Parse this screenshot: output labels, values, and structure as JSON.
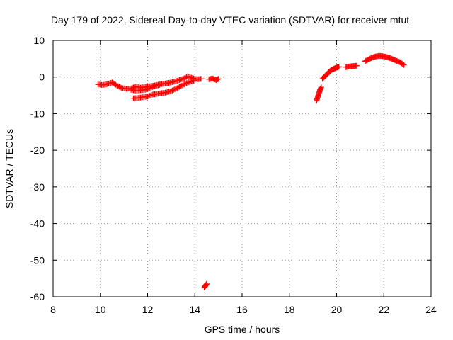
{
  "chart_data": {
    "type": "scatter",
    "title": "Day 179 of 2022, Sidereal Day-to-day VTEC variation (SDTVAR) for receiver mtut",
    "xlabel": "GPS time / hours",
    "ylabel": "SDTVAR / TECUs",
    "xlim": [
      8,
      24
    ],
    "ylim": [
      -60,
      10
    ],
    "xticks": [
      8,
      10,
      12,
      14,
      16,
      18,
      20,
      22,
      24
    ],
    "yticks": [
      -60,
      -50,
      -40,
      -30,
      -20,
      -10,
      0,
      10
    ],
    "grid": true,
    "marker": "plus",
    "series_color": "#ff0000",
    "series": [
      {
        "name": "SDTVAR",
        "segments": [
          {
            "x": [
              9.9,
              10.1,
              10.3,
              10.5,
              10.7,
              10.9,
              11.1,
              11.3,
              11.5,
              11.7,
              11.9,
              12.1,
              12.3,
              12.5,
              12.7,
              12.9,
              13.1,
              13.3,
              13.5,
              13.7,
              13.9,
              14.1,
              14.3
            ],
            "y": [
              -2.0,
              -2.2,
              -1.9,
              -1.5,
              -2.3,
              -3.0,
              -3.2,
              -3.1,
              -2.6,
              -2.9,
              -2.7,
              -2.5,
              -2.3,
              -2.0,
              -1.8,
              -1.6,
              -1.3,
              -0.9,
              -0.5,
              0.2,
              -0.3,
              -0.6,
              -0.5
            ]
          },
          {
            "x": [
              11.4,
              11.6,
              11.8,
              12.0,
              12.2,
              12.4,
              12.6,
              12.8,
              13.0,
              13.2,
              13.4,
              13.6,
              13.8,
              14.0
            ],
            "y": [
              -5.8,
              -5.7,
              -5.5,
              -5.3,
              -4.8,
              -4.6,
              -4.4,
              -4.2,
              -3.8,
              -3.2,
              -2.5,
              -1.8,
              -1.3,
              -0.9
            ]
          },
          {
            "x": [
              11.3,
              11.5,
              11.7,
              11.9,
              12.1,
              12.3,
              12.5
            ],
            "y": [
              -3.5,
              -3.7,
              -3.6,
              -3.5,
              -3.0,
              -2.5,
              -2.2
            ]
          },
          {
            "x": [
              14.6,
              14.75,
              14.9,
              15.0
            ],
            "y": [
              -0.6,
              -0.4,
              -0.8,
              -0.5
            ]
          },
          {
            "x": [
              14.4,
              14.45,
              14.5
            ],
            "y": [
              -57.5,
              -57.0,
              -56.5
            ]
          },
          {
            "x": [
              19.15,
              19.2,
              19.25,
              19.3,
              19.35
            ],
            "y": [
              -6.5,
              -5.5,
              -4.5,
              -3.5,
              -2.8
            ]
          },
          {
            "x": [
              19.4,
              19.5,
              19.6,
              19.7,
              19.8,
              19.9,
              20.0,
              20.1
            ],
            "y": [
              -0.5,
              0.2,
              0.8,
              1.5,
              2.0,
              2.3,
              2.6,
              2.8
            ]
          },
          {
            "x": [
              20.4,
              20.55,
              20.7,
              20.85
            ],
            "y": [
              2.7,
              2.9,
              3.0,
              3.1
            ]
          },
          {
            "x": [
              21.2,
              21.35,
              21.5,
              21.65,
              21.8,
              21.95,
              22.1,
              22.25,
              22.4,
              22.55,
              22.7,
              22.85
            ],
            "y": [
              4.3,
              4.8,
              5.3,
              5.6,
              5.8,
              5.7,
              5.5,
              5.2,
              4.8,
              4.4,
              4.0,
              3.3
            ]
          }
        ]
      }
    ]
  }
}
